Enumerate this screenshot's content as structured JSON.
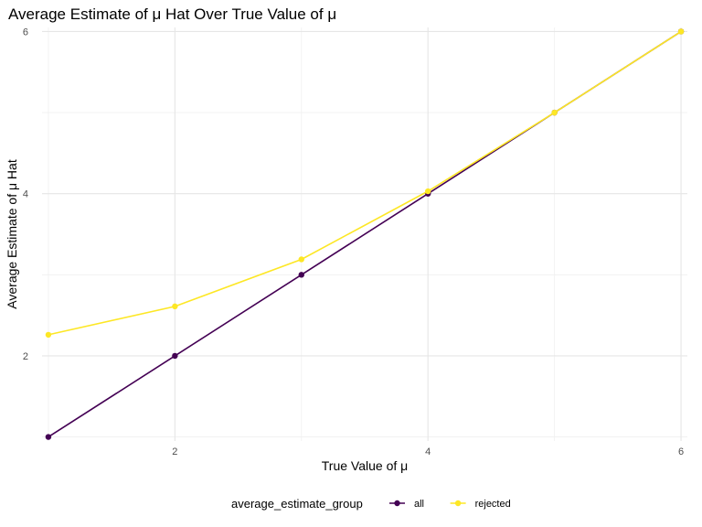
{
  "chart_data": {
    "type": "line",
    "title": "Average Estimate of μ Hat Over True Value of μ",
    "xlabel": "True Value of μ",
    "ylabel": "Average Estimate of μ Hat",
    "x": [
      1,
      2,
      3,
      4,
      5,
      6
    ],
    "xlim": [
      0.95,
      6.05
    ],
    "ylim": [
      0.95,
      6.05
    ],
    "x_ticks": [
      2,
      4,
      6
    ],
    "y_ticks": [
      2,
      4,
      6
    ],
    "x_tick_labels": [
      "2",
      "4",
      "6"
    ],
    "y_tick_labels": [
      "2",
      "4",
      "6"
    ],
    "grid": true,
    "legend_position": "bottom",
    "legend_title": "average_estimate_group",
    "series": [
      {
        "name": "all",
        "color": "#440154",
        "values": [
          1.0,
          2.0,
          3.0,
          4.0,
          5.0,
          6.0
        ]
      },
      {
        "name": "rejected",
        "color": "#FDE725",
        "values": [
          2.26,
          2.61,
          3.19,
          4.03,
          5.0,
          6.0
        ]
      }
    ]
  }
}
